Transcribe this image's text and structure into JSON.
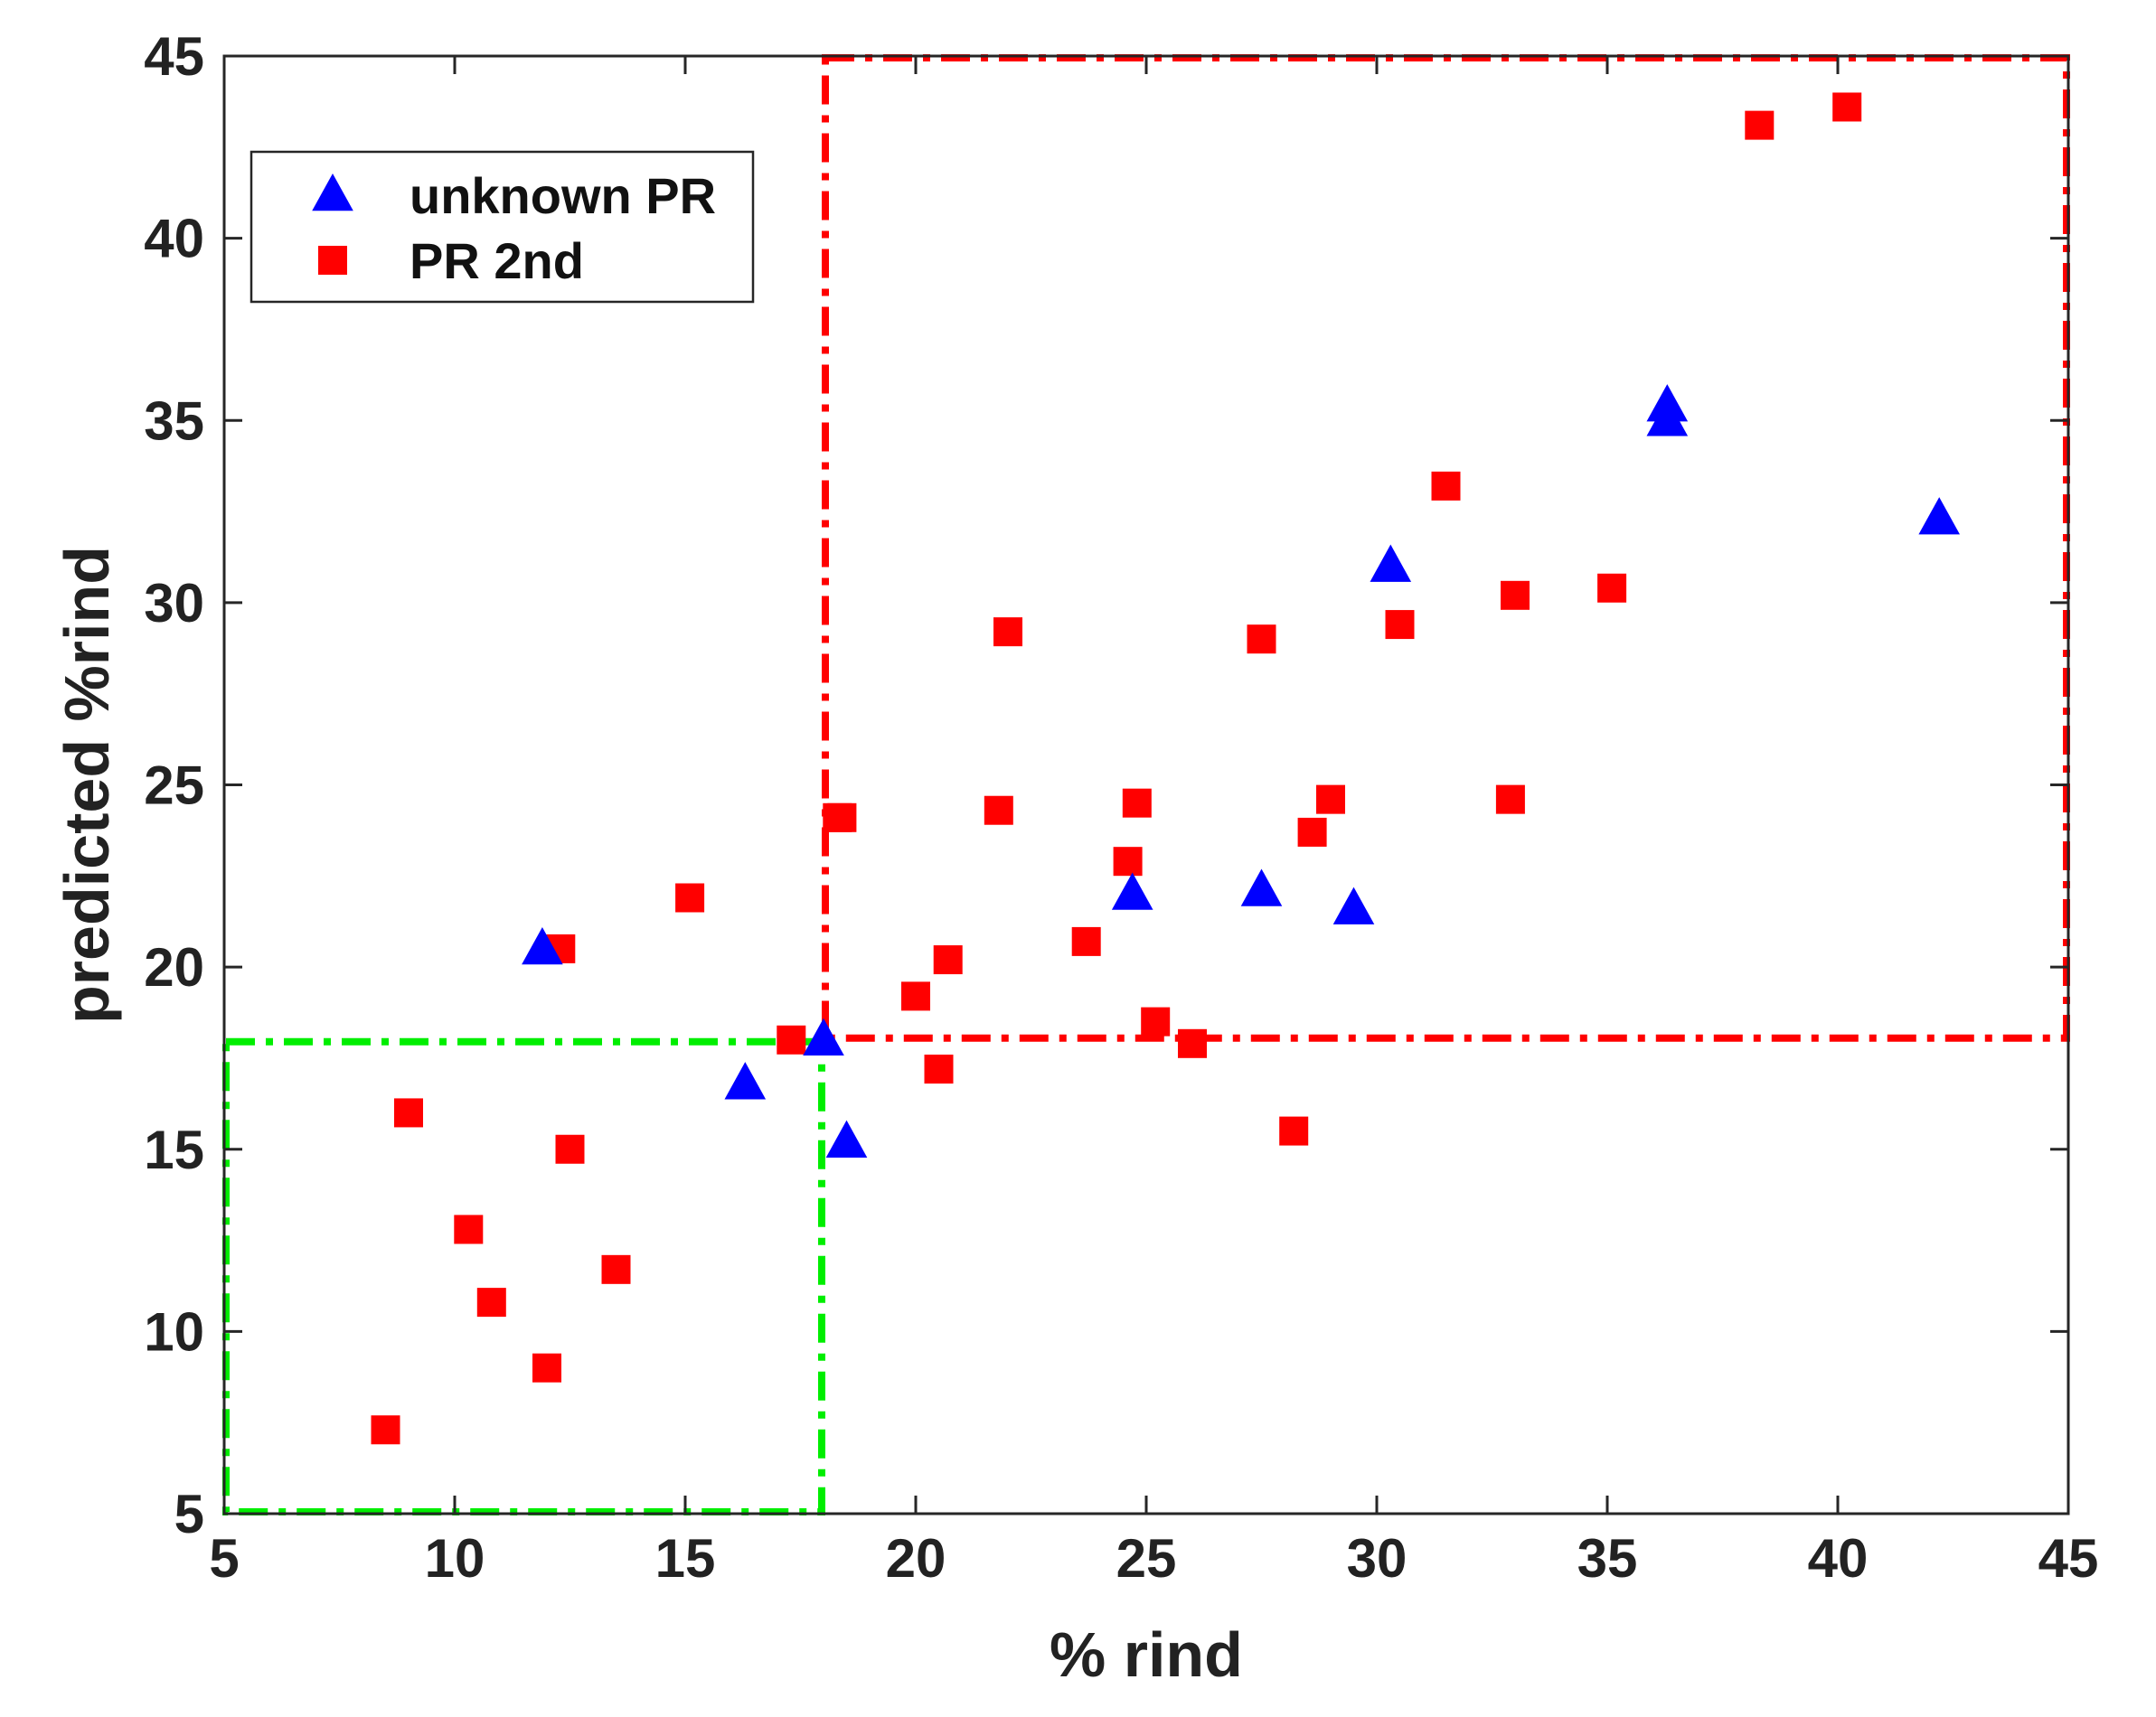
{
  "chart_data": {
    "type": "scatter",
    "title": "",
    "xlabel": "% rind",
    "ylabel": "predicted %rind",
    "xlim": [
      5,
      45
    ],
    "ylim": [
      5,
      45
    ],
    "xticks": [
      5,
      10,
      15,
      20,
      25,
      30,
      35,
      40,
      45
    ],
    "yticks": [
      5,
      10,
      15,
      20,
      25,
      30,
      35,
      40,
      45
    ],
    "grid": false,
    "legend_position": "top-left",
    "series": [
      {
        "name": "unknown PR",
        "marker": "triangle",
        "color": "#0000ff",
        "points": [
          [
            11.9,
            20.5
          ],
          [
            16.3,
            16.8
          ],
          [
            18.0,
            18.0
          ],
          [
            18.5,
            15.2
          ],
          [
            24.7,
            22.0
          ],
          [
            27.5,
            22.1
          ],
          [
            29.5,
            21.6
          ],
          [
            30.3,
            31.0
          ],
          [
            36.3,
            35.0
          ],
          [
            36.3,
            35.4
          ],
          [
            42.2,
            32.3
          ]
        ]
      },
      {
        "name": "PR 2nd",
        "marker": "square",
        "color": "#ff0000",
        "points": [
          [
            8.5,
            7.3
          ],
          [
            9.0,
            16.0
          ],
          [
            10.3,
            12.8
          ],
          [
            10.8,
            10.8
          ],
          [
            12.0,
            9.0
          ],
          [
            12.3,
            20.5
          ],
          [
            12.5,
            15.0
          ],
          [
            13.5,
            11.7
          ],
          [
            15.1,
            21.9
          ],
          [
            17.3,
            18.0
          ],
          [
            18.3,
            24.1
          ],
          [
            18.4,
            24.1
          ],
          [
            20.0,
            19.2
          ],
          [
            20.5,
            17.2
          ],
          [
            20.7,
            20.2
          ],
          [
            21.8,
            24.3
          ],
          [
            22.0,
            29.2
          ],
          [
            23.7,
            20.7
          ],
          [
            24.6,
            22.9
          ],
          [
            24.8,
            24.5
          ],
          [
            25.2,
            18.5
          ],
          [
            26.0,
            17.9
          ],
          [
            27.5,
            29.0
          ],
          [
            28.2,
            15.5
          ],
          [
            28.6,
            23.7
          ],
          [
            29.0,
            24.6
          ],
          [
            30.5,
            29.4
          ],
          [
            31.5,
            33.2
          ],
          [
            32.9,
            24.6
          ],
          [
            33.0,
            30.2
          ],
          [
            35.1,
            30.4
          ],
          [
            38.3,
            43.1
          ],
          [
            40.2,
            43.6
          ]
        ]
      }
    ],
    "regions": [
      {
        "name": "green region",
        "color": "#00ee00",
        "x": [
          5,
          18
        ],
        "y": [
          5,
          18
        ]
      },
      {
        "name": "red region",
        "color": "#ff0000",
        "x": [
          18,
          45
        ],
        "y": [
          18,
          45
        ]
      }
    ]
  }
}
